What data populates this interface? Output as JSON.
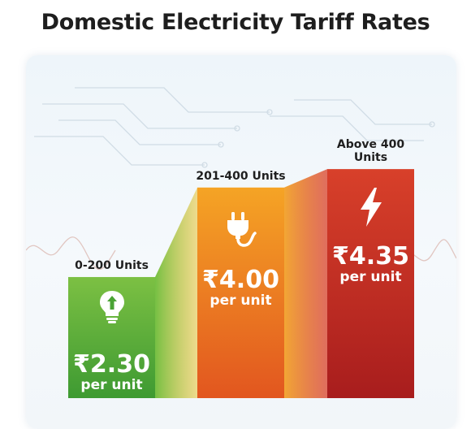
{
  "title": "Domestic Electricity Tariff Rates",
  "chart_data": {
    "type": "bar",
    "categories": [
      "0-200 Units",
      "201-400 Units",
      "Above 400 Units"
    ],
    "values": [
      2.3,
      4.0,
      4.35
    ],
    "value_labels": [
      "₹2.30",
      "₹4.00",
      "₹4.35"
    ],
    "unit_label": "per unit",
    "currency": "₹",
    "ylim": [
      0,
      5
    ],
    "grid": false,
    "bar_colors": [
      [
        "#7cc043",
        "#3e9a32"
      ],
      [
        "#f5a425",
        "#e2561f"
      ],
      [
        "#d8402a",
        "#a81d1d"
      ]
    ],
    "icons": [
      "lightbulb-arrow-icon",
      "plug-icon",
      "lightning-bolt-icon"
    ]
  }
}
